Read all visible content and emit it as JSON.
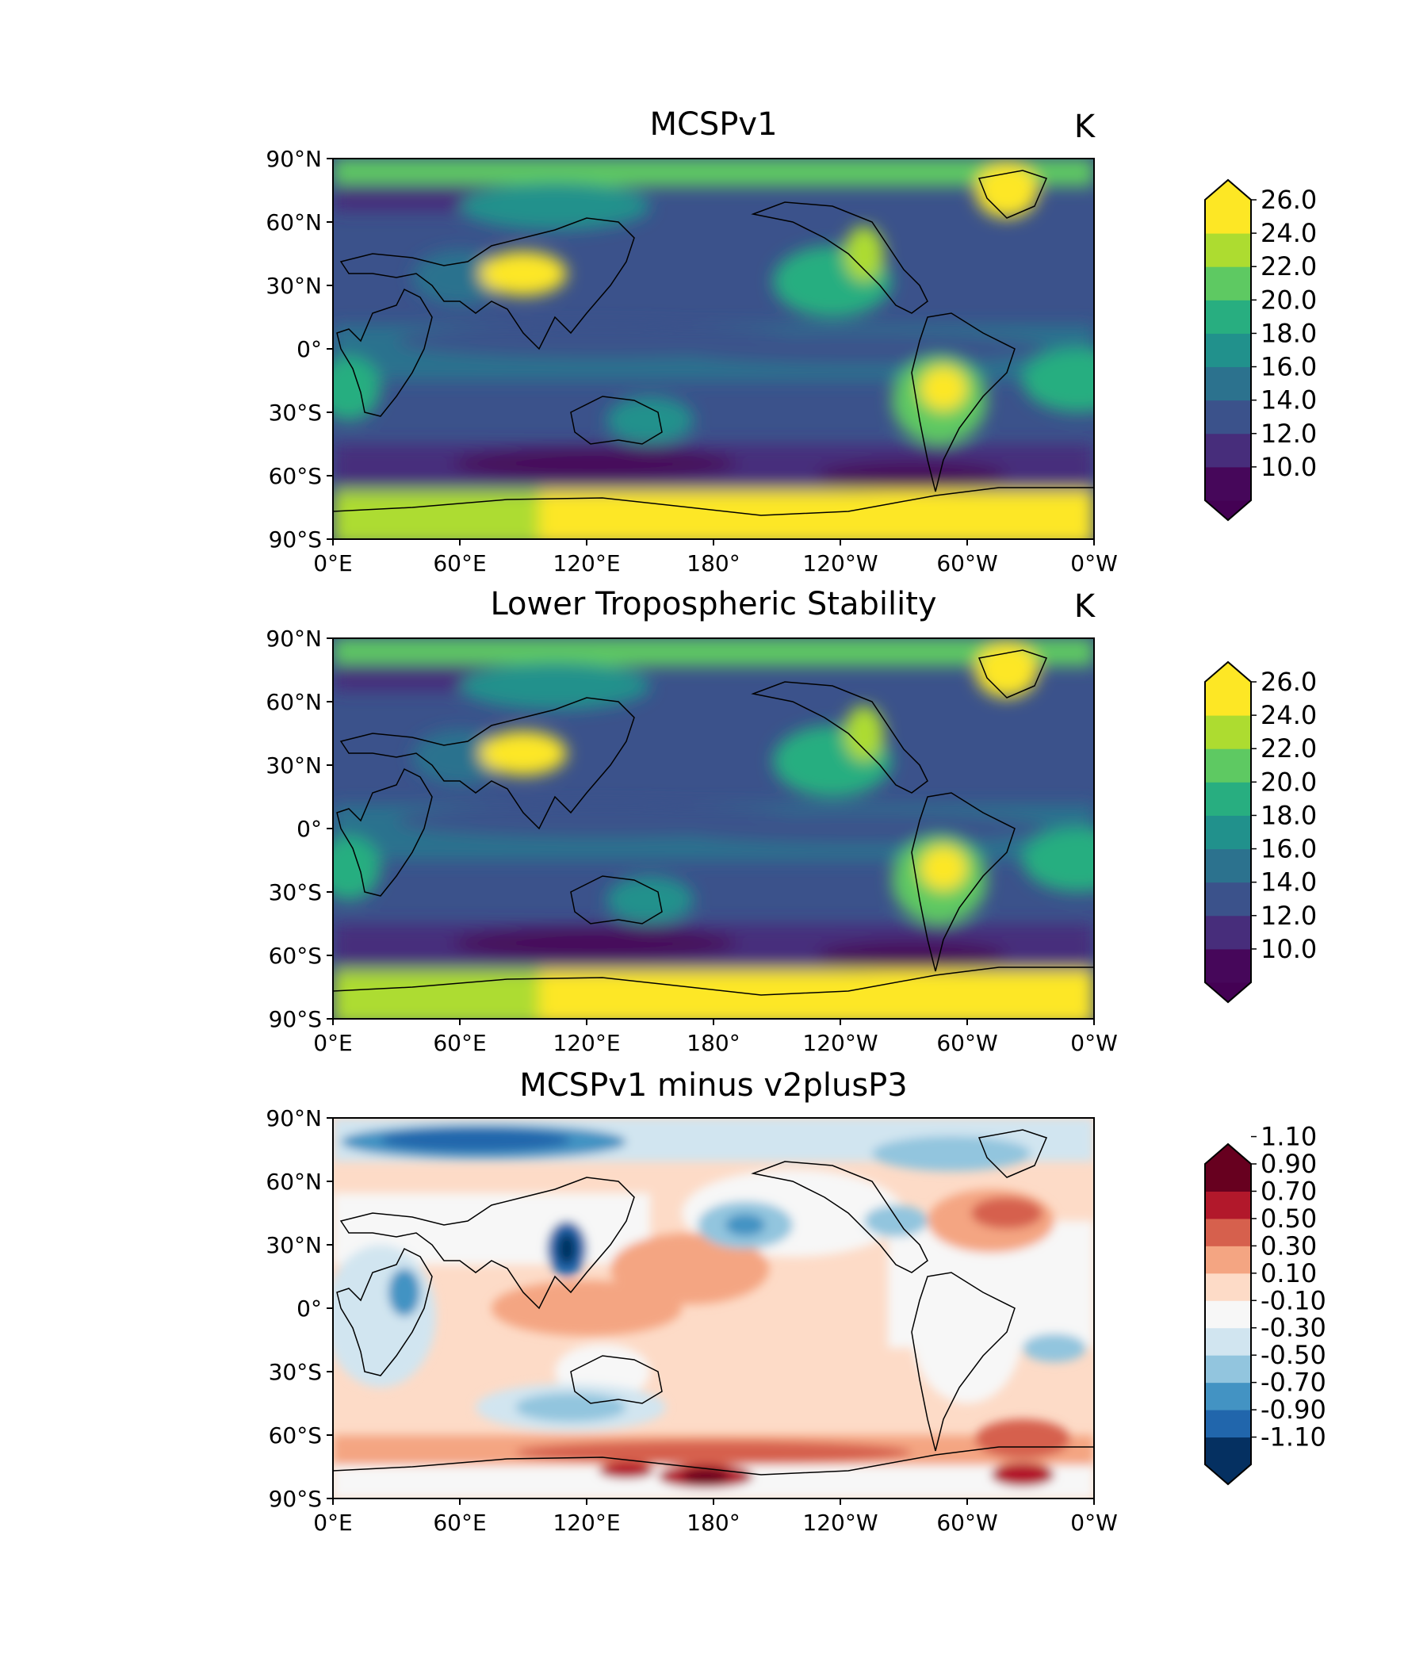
{
  "figure": {
    "panels": [
      {
        "title": "MCSPv1",
        "units": "K",
        "colormap": "viridis"
      },
      {
        "title": "Lower Tropospheric Stability",
        "units": "K",
        "colormap": "viridis"
      },
      {
        "title": "MCSPv1 minus v2plusP3",
        "units": "",
        "colormap": "RdBu_r"
      }
    ],
    "x_tick_labels": [
      "0°E",
      "60°E",
      "120°E",
      "180°",
      "120°W",
      "60°W",
      "0°W"
    ],
    "y_tick_labels": [
      "90°N",
      "60°N",
      "30°N",
      "0°",
      "30°S",
      "60°S",
      "90°S"
    ]
  },
  "chart_data": [
    {
      "type": "heatmap",
      "title": "MCSPv1",
      "units": "K",
      "xlim": [
        0,
        360
      ],
      "ylim": [
        -90,
        90
      ],
      "colorbar": {
        "levels": [
          8,
          10,
          12,
          14,
          16,
          18,
          20,
          22,
          24,
          26,
          28
        ],
        "tick_labels": [
          "10.0",
          "12.0",
          "14.0",
          "16.0",
          "18.0",
          "20.0",
          "22.0",
          "24.0",
          "26.0"
        ],
        "colors": [
          "#46075a",
          "#472d7b",
          "#3b528b",
          "#2c728e",
          "#21918c",
          "#28ae80",
          "#5ec962",
          "#addc30",
          "#fde725"
        ],
        "extend": "both",
        "under_color": "#440154",
        "over_color": "#fde725"
      }
    },
    {
      "type": "heatmap",
      "title": "Lower Tropospheric Stability",
      "units": "K",
      "xlim": [
        0,
        360
      ],
      "ylim": [
        -90,
        90
      ],
      "colorbar": {
        "levels": [
          8,
          10,
          12,
          14,
          16,
          18,
          20,
          22,
          24,
          26,
          28
        ],
        "tick_labels": [
          "10.0",
          "12.0",
          "14.0",
          "16.0",
          "18.0",
          "20.0",
          "22.0",
          "24.0",
          "26.0"
        ],
        "colors": [
          "#46075a",
          "#472d7b",
          "#3b528b",
          "#2c728e",
          "#21918c",
          "#28ae80",
          "#5ec962",
          "#addc30",
          "#fde725"
        ],
        "extend": "both",
        "under_color": "#440154",
        "over_color": "#fde725"
      }
    },
    {
      "type": "heatmap",
      "title": "MCSPv1 minus v2plusP3",
      "units": "",
      "xlim": [
        0,
        360
      ],
      "ylim": [
        -90,
        90
      ],
      "colorbar": {
        "levels": [
          -1.2,
          -1.1,
          -0.9,
          -0.7,
          -0.5,
          -0.3,
          -0.1,
          0.1,
          0.3,
          0.5,
          0.7,
          0.9,
          1.1,
          1.2
        ],
        "tick_labels": [
          "-1.10",
          "-0.90",
          "-0.70",
          "-0.50",
          "-0.30",
          "-0.10",
          "0.10",
          "0.30",
          "0.50",
          "0.70",
          "0.90",
          "1.10"
        ],
        "colors": [
          "#053061",
          "#2166ac",
          "#4393c3",
          "#92c5de",
          "#d1e5f0",
          "#f7f7f7",
          "#fddbc7",
          "#f4a582",
          "#d6604d",
          "#b2182b",
          "#67001f"
        ],
        "extend": "both",
        "under_color": "#053061",
        "over_color": "#67001f"
      }
    }
  ]
}
